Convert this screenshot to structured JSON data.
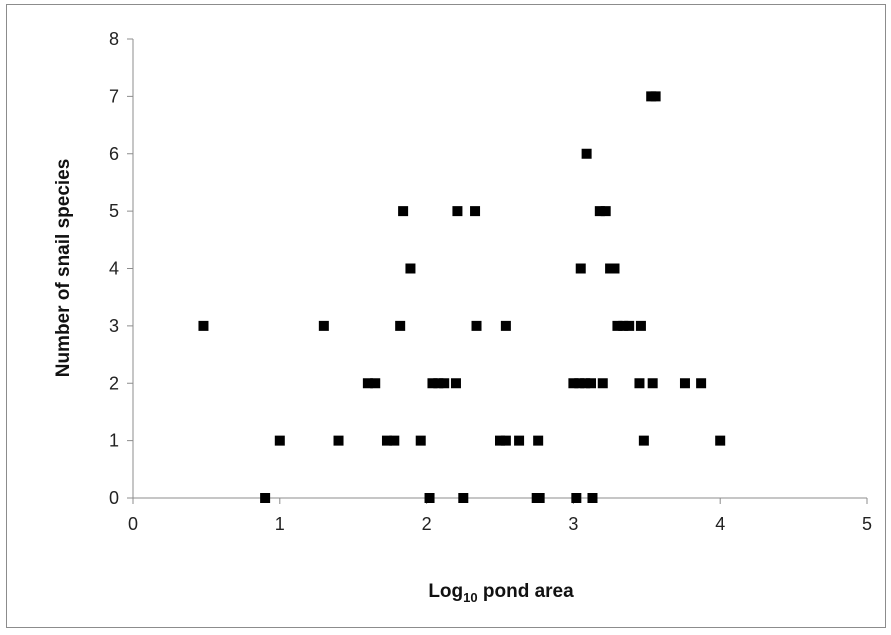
{
  "chart_data": {
    "type": "scatter",
    "title": "",
    "xlabel": {
      "prefix": "Log",
      "subscript": "10",
      "suffix": " pond area"
    },
    "ylabel": "Number of snail species",
    "xlim": [
      0,
      5
    ],
    "ylim": [
      0,
      8
    ],
    "x_ticks": [
      "0",
      "1",
      "2",
      "3",
      "4",
      "5"
    ],
    "y_ticks": [
      "0",
      "1",
      "2",
      "3",
      "4",
      "5",
      "6",
      "7",
      "8"
    ],
    "grid": false,
    "legend": "none",
    "marker": "square",
    "marker_color": "#000000",
    "series": [
      {
        "points": [
          [
            0.48,
            3
          ],
          [
            0.9,
            0
          ],
          [
            1.0,
            1
          ],
          [
            1.3,
            3
          ],
          [
            1.4,
            1
          ],
          [
            1.6,
            2
          ],
          [
            1.65,
            2
          ],
          [
            1.73,
            1
          ],
          [
            1.78,
            1
          ],
          [
            1.82,
            3
          ],
          [
            1.84,
            5
          ],
          [
            1.89,
            4
          ],
          [
            1.96,
            1
          ],
          [
            2.02,
            0
          ],
          [
            2.04,
            2
          ],
          [
            2.08,
            2
          ],
          [
            2.12,
            2
          ],
          [
            2.2,
            2
          ],
          [
            2.21,
            5
          ],
          [
            2.25,
            0
          ],
          [
            2.33,
            5
          ],
          [
            2.34,
            3
          ],
          [
            2.5,
            1
          ],
          [
            2.54,
            1
          ],
          [
            2.54,
            3
          ],
          [
            2.63,
            1
          ],
          [
            2.75,
            0
          ],
          [
            2.76,
            1
          ],
          [
            2.77,
            0
          ],
          [
            3.0,
            2
          ],
          [
            3.02,
            0
          ],
          [
            3.04,
            2
          ],
          [
            3.05,
            4
          ],
          [
            3.08,
            2
          ],
          [
            3.09,
            6
          ],
          [
            3.12,
            2
          ],
          [
            3.13,
            0
          ],
          [
            3.18,
            5
          ],
          [
            3.2,
            2
          ],
          [
            3.22,
            5
          ],
          [
            3.25,
            4
          ],
          [
            3.28,
            4
          ],
          [
            3.3,
            3
          ],
          [
            3.34,
            3
          ],
          [
            3.38,
            3
          ],
          [
            3.45,
            2
          ],
          [
            3.46,
            3
          ],
          [
            3.48,
            1
          ],
          [
            3.53,
            7
          ],
          [
            3.56,
            7
          ],
          [
            3.54,
            2
          ],
          [
            3.76,
            2
          ],
          [
            3.87,
            2
          ],
          [
            4.0,
            1
          ]
        ]
      }
    ]
  }
}
